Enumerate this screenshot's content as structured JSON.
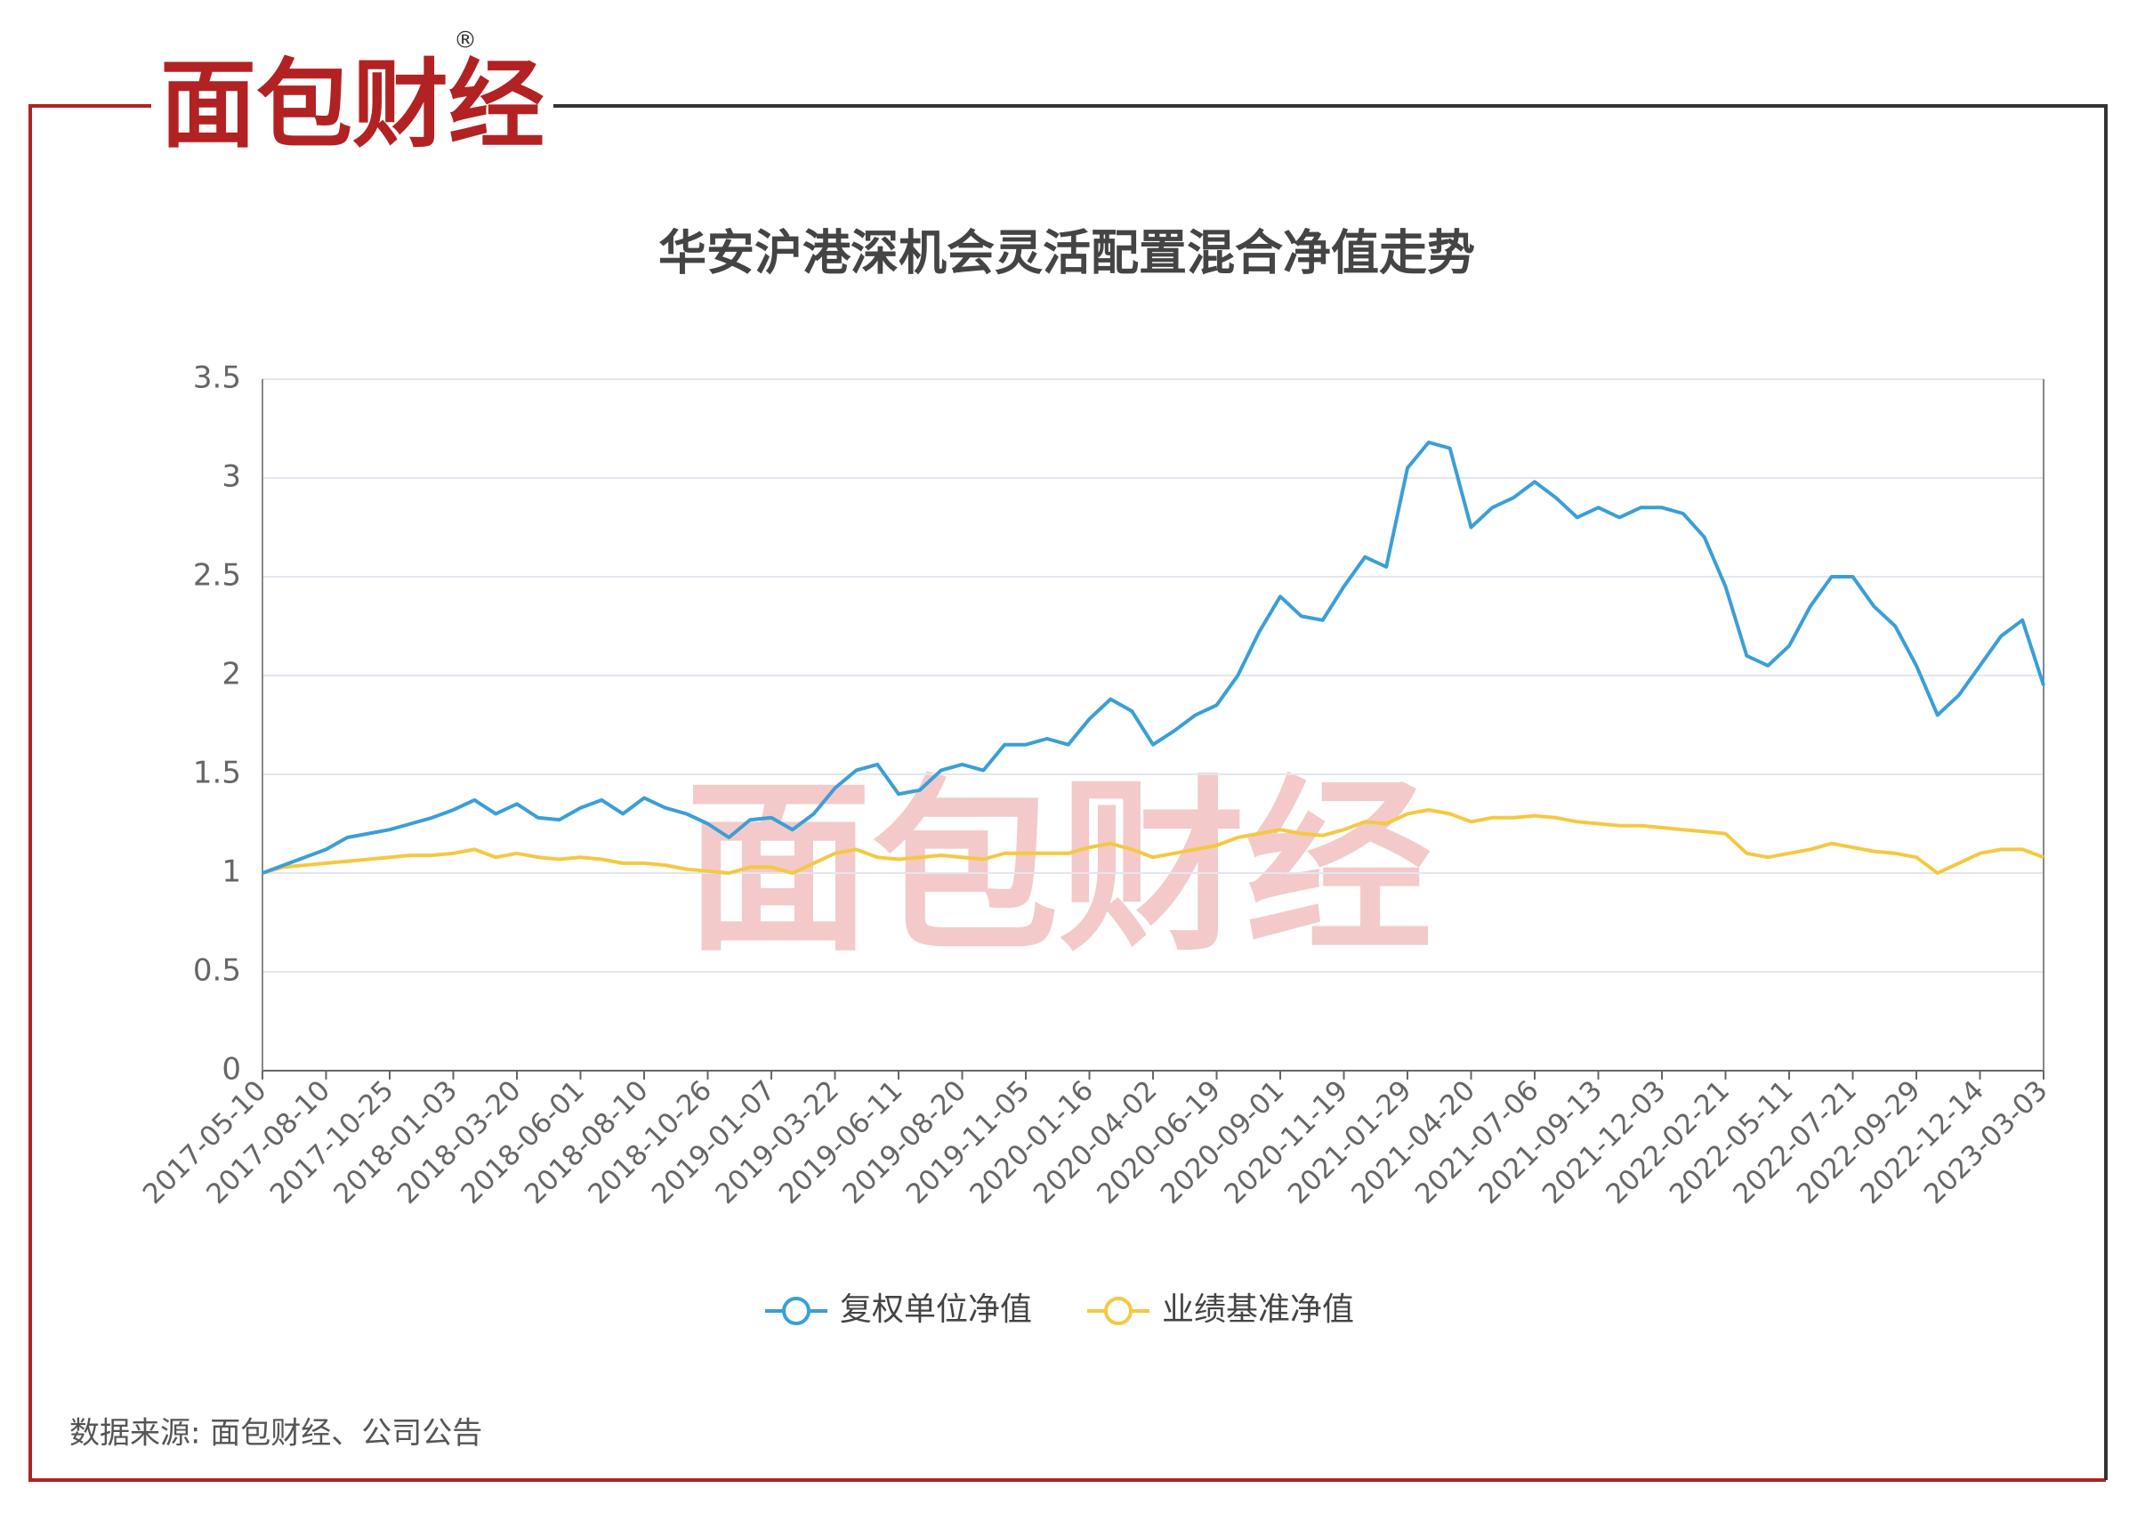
{
  "brand": "面包财经",
  "brand_mark": "®",
  "source": "数据来源: 面包财经、公司公告",
  "chart_data": {
    "type": "line",
    "title": "华安沪港深机会灵活配置混合净值走势",
    "categories": [
      "2017-05-10",
      null,
      null,
      "2017-08-10",
      null,
      null,
      "2017-10-25",
      null,
      null,
      "2018-01-03",
      null,
      null,
      "2018-03-20",
      null,
      null,
      "2018-06-01",
      null,
      null,
      "2018-08-10",
      null,
      null,
      "2018-10-26",
      null,
      null,
      "2019-01-07",
      null,
      null,
      "2019-03-22",
      null,
      null,
      "2019-06-11",
      null,
      null,
      "2019-08-20",
      null,
      null,
      "2019-11-05",
      null,
      null,
      "2020-01-16",
      null,
      null,
      "2020-04-02",
      null,
      null,
      "2020-06-19",
      null,
      null,
      "2020-09-01",
      null,
      null,
      "2020-11-19",
      null,
      null,
      "2021-01-29",
      null,
      null,
      "2021-04-20",
      null,
      null,
      "2021-07-06",
      null,
      null,
      "2021-09-13",
      null,
      null,
      "2021-12-03",
      null,
      null,
      "2022-02-21",
      null,
      null,
      "2022-05-11",
      null,
      null,
      "2022-07-21",
      null,
      null,
      "2022-09-29",
      null,
      null,
      "2022-12-14",
      null,
      null,
      "2023-03-03"
    ],
    "series": [
      {
        "name": "复权单位净值",
        "color": "#3a9fd6",
        "values": [
          1.0,
          1.04,
          1.08,
          1.12,
          1.18,
          1.2,
          1.22,
          1.25,
          1.28,
          1.32,
          1.37,
          1.3,
          1.35,
          1.28,
          1.27,
          1.33,
          1.37,
          1.3,
          1.38,
          1.33,
          1.3,
          1.25,
          1.18,
          1.27,
          1.28,
          1.22,
          1.3,
          1.43,
          1.52,
          1.55,
          1.4,
          1.42,
          1.52,
          1.55,
          1.52,
          1.65,
          1.65,
          1.68,
          1.65,
          1.78,
          1.88,
          1.82,
          1.65,
          1.72,
          1.8,
          1.85,
          2.0,
          2.22,
          2.4,
          2.3,
          2.28,
          2.45,
          2.6,
          2.55,
          3.05,
          3.18,
          3.15,
          2.75,
          2.85,
          2.9,
          2.98,
          2.9,
          2.8,
          2.85,
          2.8,
          2.85,
          2.85,
          2.82,
          2.7,
          2.45,
          2.1,
          2.05,
          2.15,
          2.35,
          2.5,
          2.5,
          2.35,
          2.25,
          2.05,
          1.8,
          1.9,
          2.05,
          2.2,
          2.28,
          1.95
        ]
      },
      {
        "name": "业绩基准净值",
        "color": "#f5c842",
        "values": [
          1.0,
          1.03,
          1.04,
          1.05,
          1.06,
          1.07,
          1.08,
          1.09,
          1.09,
          1.1,
          1.12,
          1.08,
          1.1,
          1.08,
          1.07,
          1.08,
          1.07,
          1.05,
          1.05,
          1.04,
          1.02,
          1.01,
          1.0,
          1.03,
          1.03,
          1.0,
          1.05,
          1.1,
          1.12,
          1.08,
          1.07,
          1.08,
          1.09,
          1.08,
          1.07,
          1.1,
          1.1,
          1.1,
          1.1,
          1.13,
          1.15,
          1.12,
          1.08,
          1.1,
          1.12,
          1.14,
          1.18,
          1.2,
          1.22,
          1.2,
          1.19,
          1.22,
          1.26,
          1.25,
          1.3,
          1.32,
          1.3,
          1.26,
          1.28,
          1.28,
          1.29,
          1.28,
          1.26,
          1.25,
          1.24,
          1.24,
          1.23,
          1.22,
          1.21,
          1.2,
          1.1,
          1.08,
          1.1,
          1.12,
          1.15,
          1.13,
          1.11,
          1.1,
          1.08,
          1.0,
          1.05,
          1.1,
          1.12,
          1.12,
          1.08
        ]
      }
    ],
    "ylim": [
      0,
      3.5
    ],
    "yticks": [
      0,
      0.5,
      1,
      1.5,
      2,
      2.5,
      3,
      3.5
    ],
    "grid": true,
    "legend": "bottom"
  }
}
